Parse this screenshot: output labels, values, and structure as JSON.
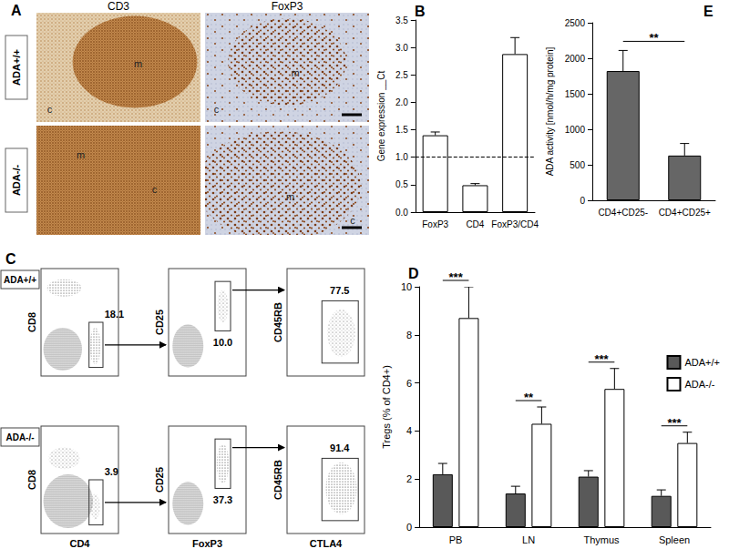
{
  "panel_labels": [
    "A",
    "B",
    "C",
    "D",
    "E"
  ],
  "histology": {
    "columns": [
      "CD3",
      "FoxP3"
    ],
    "rows": [
      "ADA+/+",
      "ADA-/-"
    ],
    "medulla": "m",
    "cortex": "c"
  },
  "flow_cytometry": {
    "rows": [
      "ADA+/+",
      "ADA-/-"
    ],
    "plots": [
      {
        "x_label": "CD4",
        "y_label": "CD8",
        "gates": [
          18.1,
          3.9
        ]
      },
      {
        "x_label": "FoxP3",
        "y_label": "CD25",
        "gates": [
          {
            "value": 10.0,
            "label": "10.0"
          },
          37.3
        ]
      },
      {
        "x_label": "CTLA4",
        "y_label": "CD45RB",
        "gates": [
          77.5,
          91.4
        ]
      }
    ]
  },
  "chart_data": [
    {
      "type": "bar",
      "y_label": "Gene expression __Ct",
      "categories": [
        "FoxP3",
        "CD4",
        "FoxP3/CD4"
      ],
      "values": [
        1.4,
        0.49,
        2.88
      ],
      "errors": [
        0.06,
        0.03,
        0.3
      ],
      "color": "#ffffff",
      "reference_line": 1.0,
      "ylim": [
        0,
        3.5
      ],
      "yticks": [
        {
          "value": 0,
          "label": "0.0"
        },
        {
          "value": 0.5,
          "label": "0.5"
        },
        {
          "value": 1,
          "label": "1.0"
        },
        {
          "value": 1.5,
          "label": "1.5"
        },
        {
          "value": 2,
          "label": "2.0"
        },
        {
          "value": 2.5,
          "label": "2.5"
        },
        {
          "value": 3,
          "label": "3.0"
        },
        {
          "value": 3.5,
          "label": "3.5"
        }
      ]
    },
    {
      "type": "bar",
      "y_label": "Tregs (% of CD4+)",
      "categories": [
        "PB",
        "LN",
        "Thymus",
        "Spleen"
      ],
      "series": [
        {
          "name": "ADA+/+",
          "color": "#595959",
          "values": [
            2.2,
            1.4,
            2.1,
            1.3
          ],
          "errors": [
            0.45,
            0.3,
            0.25,
            0.25
          ]
        },
        {
          "name": "ADA-/-",
          "color": "#ffffff",
          "values": [
            8.7,
            4.3,
            5.75,
            3.5
          ],
          "errors": [
            1.3,
            0.7,
            0.85,
            0.45
          ]
        }
      ],
      "significance": [
        "***",
        "**",
        "***",
        "***"
      ],
      "ylim": [
        0,
        10
      ],
      "yticks": [
        0,
        2,
        4,
        6,
        8,
        10
      ],
      "legend": "right"
    },
    {
      "type": "bar",
      "y_label": "ADA activity [nmol/h/mg protein]",
      "categories": [
        "CD4+CD25-",
        "CD4+CD25+"
      ],
      "values": [
        1820,
        630
      ],
      "errors": [
        290,
        170
      ],
      "color": "#666666",
      "significance": "**",
      "ylim": [
        0,
        2500
      ],
      "yticks": [
        0,
        500,
        1000,
        1500,
        2000,
        2500
      ]
    }
  ]
}
